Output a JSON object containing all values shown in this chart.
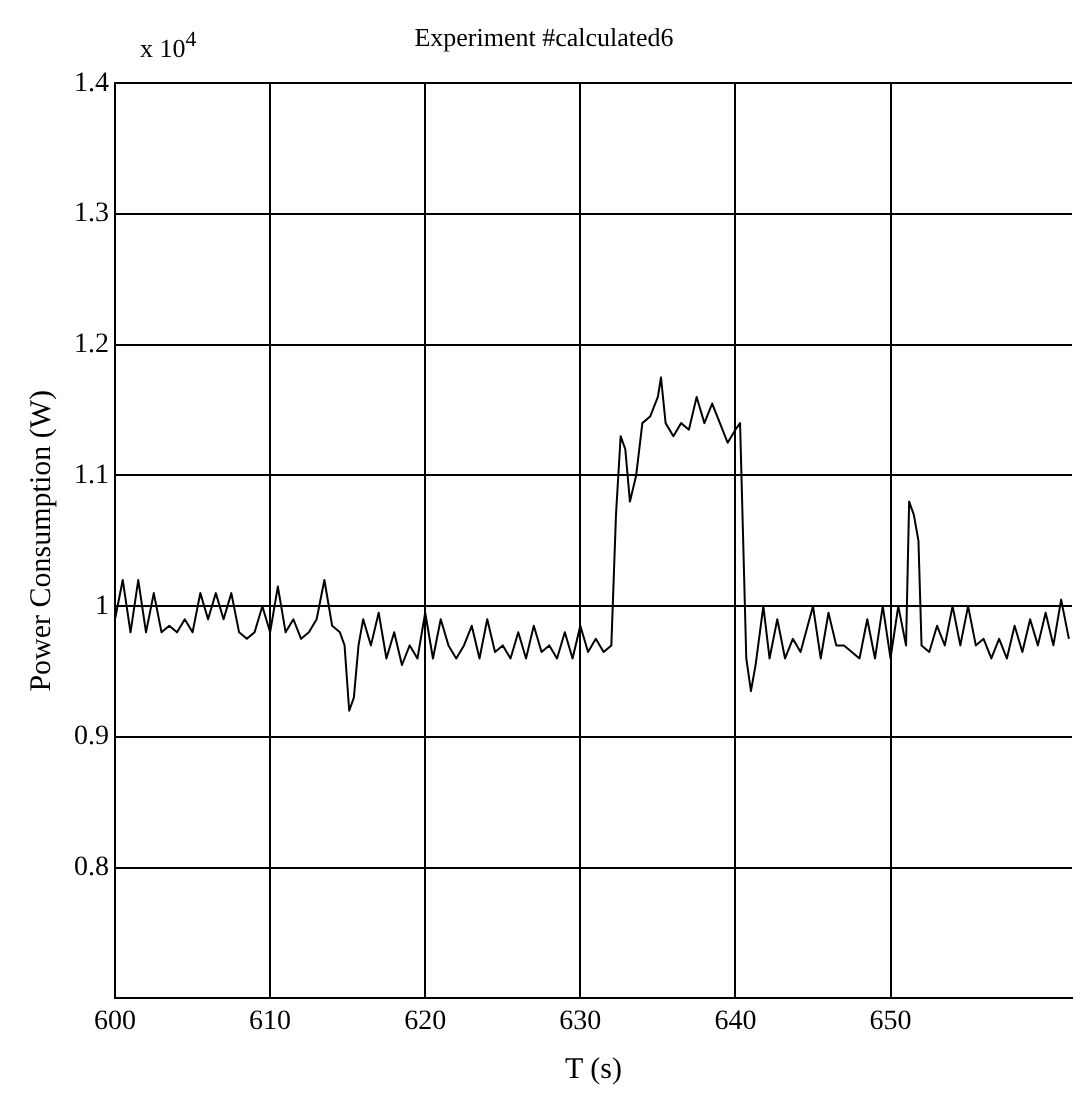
{
  "chart_data": {
    "type": "line",
    "title": "Experiment #calculated6",
    "xlabel": "T (s)",
    "ylabel": "Power Consumption (W)",
    "annotations": [
      "x 10$^{4}$"
    ],
    "xlim": [
      600,
      661.7
    ],
    "xticks": [
      600,
      610,
      620,
      630,
      640,
      650
    ],
    "ylim": [
      0.7,
      1.4
    ],
    "yticks": [
      {
        "value": 0.8,
        "label": "0.8"
      },
      {
        "value": 0.9,
        "label": "0.9"
      },
      {
        "value": 1,
        "label": "1"
      },
      {
        "value": 1.1,
        "label": "1.1"
      },
      {
        "value": 1.2,
        "label": "1.2"
      },
      {
        "value": 1.3,
        "label": "1.3"
      },
      {
        "value": 1.4,
        "label": "1.4"
      }
    ],
    "grid": true,
    "marker": "none",
    "line_style": "solid",
    "series": [
      {
        "color": "#000000",
        "x": [
          600,
          600.5,
          601,
          601.5,
          602,
          602.5,
          603,
          603.5,
          604,
          604.5,
          605,
          605.5,
          606,
          606.5,
          607,
          607.5,
          608,
          608.5,
          609,
          609.5,
          610,
          610.5,
          611,
          611.5,
          612,
          612.5,
          613,
          613.5,
          614,
          614.5,
          614.8,
          615.1,
          615.4,
          615.7,
          616,
          616.5,
          617,
          617.5,
          618,
          618.5,
          619,
          619.5,
          620,
          620.5,
          621,
          621.5,
          622,
          622.5,
          623,
          623.5,
          624,
          624.5,
          625,
          625.5,
          626,
          626.5,
          627,
          627.5,
          628,
          628.5,
          629,
          629.5,
          630,
          630.5,
          631,
          631.5,
          632,
          632.3,
          632.6,
          632.9,
          633.2,
          633.6,
          634,
          634.5,
          635,
          635.2,
          635.5,
          636,
          636.5,
          637,
          637.5,
          638,
          638.5,
          639,
          639.5,
          640,
          640.3,
          640.7,
          641,
          641.3,
          641.8,
          642.2,
          642.7,
          643.2,
          643.7,
          644.2,
          645,
          645.5,
          646,
          646.5,
          647,
          647.5,
          648,
          648.5,
          649,
          649.5,
          650,
          650.5,
          651,
          651.2,
          651.5,
          651.8,
          652,
          652.5,
          653,
          653.5,
          654,
          654.5,
          655,
          655.5,
          656,
          656.5,
          657,
          657.5,
          658,
          658.5,
          659,
          659.5,
          660,
          660.5,
          661,
          661.5
        ],
        "values": [
          0.99,
          1.02,
          0.98,
          1.02,
          0.98,
          1.01,
          0.98,
          0.985,
          0.98,
          0.99,
          0.98,
          1.01,
          0.99,
          1.01,
          0.99,
          1.01,
          0.98,
          0.975,
          0.98,
          1.0,
          0.98,
          1.015,
          0.98,
          0.99,
          0.975,
          0.98,
          0.99,
          1.02,
          0.985,
          0.98,
          0.97,
          0.92,
          0.93,
          0.97,
          0.99,
          0.97,
          0.995,
          0.96,
          0.98,
          0.955,
          0.97,
          0.96,
          0.995,
          0.96,
          0.99,
          0.97,
          0.96,
          0.97,
          0.985,
          0.96,
          0.99,
          0.965,
          0.97,
          0.96,
          0.98,
          0.96,
          0.985,
          0.965,
          0.97,
          0.96,
          0.98,
          0.96,
          0.985,
          0.965,
          0.975,
          0.965,
          0.97,
          1.07,
          1.13,
          1.12,
          1.08,
          1.1,
          1.14,
          1.145,
          1.16,
          1.175,
          1.14,
          1.13,
          1.14,
          1.135,
          1.16,
          1.14,
          1.155,
          1.14,
          1.125,
          1.135,
          1.14,
          0.96,
          0.935,
          0.955,
          1.0,
          0.96,
          0.99,
          0.96,
          0.975,
          0.965,
          1.0,
          0.96,
          0.995,
          0.97,
          0.97,
          0.965,
          0.96,
          0.99,
          0.96,
          1.0,
          0.96,
          1.0,
          0.97,
          1.08,
          1.07,
          1.05,
          0.97,
          0.965,
          0.985,
          0.97,
          1.0,
          0.97,
          1.0,
          0.97,
          0.975,
          0.96,
          0.975,
          0.96,
          0.985,
          0.965,
          0.99,
          0.97,
          0.995,
          0.97,
          1.005,
          0.975
        ]
      }
    ]
  }
}
